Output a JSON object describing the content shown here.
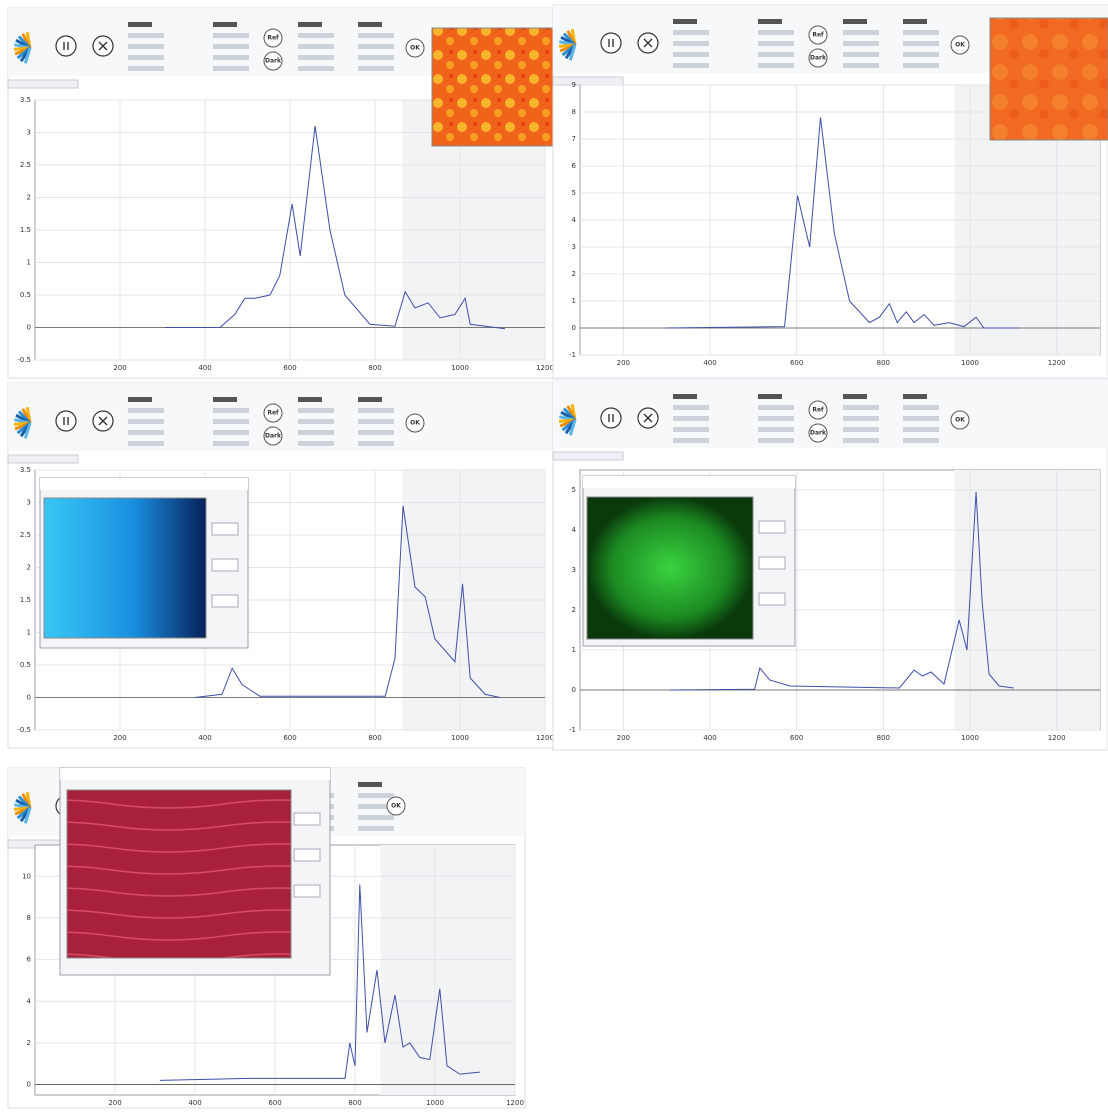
{
  "panels": [
    {
      "buttons": [
        "Ref",
        "Dark",
        "OK"
      ],
      "chart": {
        "type": "line",
        "xlim": [
          0,
          1200
        ],
        "xticks": [
          200,
          400,
          600,
          800,
          1000,
          1200
        ],
        "ylim": [
          -0.5,
          3.5
        ],
        "yticks": [
          -0.5,
          0,
          0.5,
          1,
          1.5,
          2,
          2.5,
          3,
          3.5
        ],
        "grid": true,
        "color": "#3f4fa8",
        "x": [
          306,
          435,
          470,
          494,
          518,
          553,
          576,
          605,
          624,
          659,
          694,
          729,
          788,
          847,
          871,
          894,
          925,
          953,
          988,
          1012,
          1024,
          1106
        ],
        "y": [
          0,
          0,
          0.2,
          0.45,
          0.45,
          0.5,
          0.8,
          1.9,
          1.1,
          3.1,
          1.5,
          0.5,
          0.05,
          0.02,
          0.55,
          0.3,
          0.38,
          0.15,
          0.2,
          0.45,
          0.05,
          -0.02
        ]
      }
    },
    {
      "buttons": [
        "Ref",
        "Dark",
        "OK"
      ],
      "chart": {
        "type": "line",
        "xlim": [
          100,
          1300
        ],
        "xticks": [
          200,
          400,
          600,
          800,
          1000,
          1200
        ],
        "ylim": [
          -1,
          9
        ],
        "yticks": [
          -1,
          0,
          1,
          2,
          3,
          4,
          5,
          6,
          7,
          8,
          9
        ],
        "grid": true,
        "color": "#3f4fa8",
        "x": [
          297,
          572,
          602,
          630,
          655,
          687,
          722,
          768,
          791,
          814,
          832,
          853,
          871,
          894,
          917,
          952,
          986,
          1014,
          1032,
          1112
        ],
        "y": [
          0,
          0.05,
          4.9,
          3.0,
          7.8,
          3.5,
          1.0,
          0.2,
          0.4,
          0.9,
          0.2,
          0.6,
          0.2,
          0.5,
          0.1,
          0.2,
          0.05,
          0.4,
          0,
          0
        ]
      }
    },
    {
      "buttons": [
        "Ref",
        "Dark",
        "OK"
      ],
      "chart": {
        "type": "line",
        "xlim": [
          0,
          1200
        ],
        "xticks": [
          200,
          400,
          600,
          800,
          1000,
          1200
        ],
        "ylim": [
          -0.5,
          3.5
        ],
        "yticks": [
          -0.5,
          0,
          0.5,
          1,
          1.5,
          2,
          2.5,
          3,
          3.5
        ],
        "grid": true,
        "color": "#3f4fa8",
        "x": [
          376,
          440,
          464,
          487,
          529,
          824,
          847,
          866,
          894,
          918,
          941,
          988,
          1006,
          1024,
          1059,
          1094
        ],
        "y": [
          0,
          0.05,
          0.45,
          0.2,
          0.02,
          0.02,
          0.6,
          2.95,
          1.7,
          1.55,
          0.9,
          0.55,
          1.75,
          0.3,
          0.05,
          0
        ]
      }
    },
    {
      "buttons": [
        "Ref",
        "Dark",
        "OK"
      ],
      "chart": {
        "type": "line",
        "xlim": [
          100,
          1300
        ],
        "xticks": [
          200,
          400,
          600,
          800,
          1000,
          1200
        ],
        "ylim": [
          -1,
          5.5
        ],
        "yticks": [
          -1,
          0,
          1,
          2,
          3,
          4,
          5
        ],
        "grid": true,
        "color": "#3f4fa8",
        "x": [
          308,
          503,
          515,
          538,
          584,
          837,
          871,
          890,
          910,
          940,
          975,
          993,
          1014,
          1028,
          1044,
          1067,
          1101
        ],
        "y": [
          0,
          0.02,
          0.55,
          0.25,
          0.1,
          0.05,
          0.5,
          0.35,
          0.45,
          0.15,
          1.75,
          1.0,
          4.95,
          2.2,
          0.4,
          0.1,
          0.05
        ]
      }
    },
    {
      "buttons": [
        "OK"
      ],
      "chart": {
        "type": "line",
        "xlim": [
          0,
          1200
        ],
        "xticks": [
          200,
          400,
          600,
          800,
          1000,
          1200
        ],
        "ylim": [
          -0.5,
          11.5
        ],
        "yticks": [
          0,
          2,
          4,
          6,
          8,
          10
        ],
        "grid": true,
        "color": "#3f4fa8",
        "x": [
          312,
          537,
          775,
          787,
          800,
          812,
          830,
          855,
          875,
          900,
          920,
          937,
          962,
          987,
          1012,
          1030,
          1062,
          1112
        ],
        "y": [
          0.2,
          0.3,
          0.3,
          2.0,
          0.9,
          9.6,
          2.5,
          5.5,
          2.0,
          4.3,
          1.8,
          2.0,
          1.3,
          1.2,
          4.6,
          0.9,
          0.5,
          0.6
        ]
      }
    }
  ]
}
